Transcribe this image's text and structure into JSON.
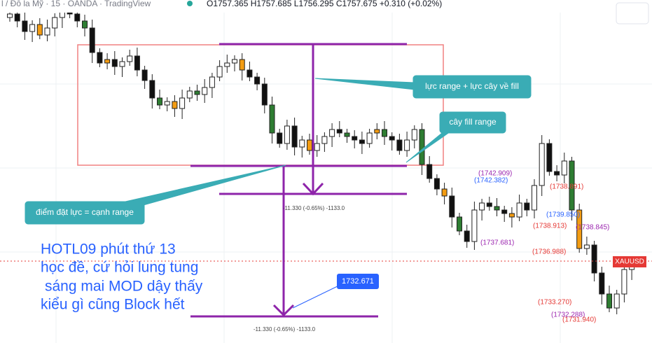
{
  "header": {
    "symbol": "l / Đô la Mỹ · 15 · OANDA · TradingView",
    "ohlc": "O1757.365 H1757.685 L1756.295 C1757.675 +0.310 (+0.02%)"
  },
  "callouts": [
    "lực range + lực cây về fill",
    "cây fill range",
    "điểm đặt lực = cạnh range"
  ],
  "measure_labels": [
    "-11.330 (-0.65%) -1133.0",
    "-11.330 (-0.65%) -1133.0"
  ],
  "note_lines": [
    "HOTL09 phút thứ 13",
    "học đề, cứ hỏi lung tung",
    "sáng mai MOD dậy thấy",
    "kiểu gì cũng Block hết"
  ],
  "price_tag": "1732.671",
  "symbol_tag": "XAUUSD",
  "levels": [
    "(1742.909)",
    "(1742.382)",
    "(1738.891)",
    "(1739.850)",
    "(1738.913)",
    "(1738.845)",
    "(1737.681)",
    "(1736.988)",
    "(1733.270)",
    "(1732.288)",
    "(1731.940)"
  ]
}
